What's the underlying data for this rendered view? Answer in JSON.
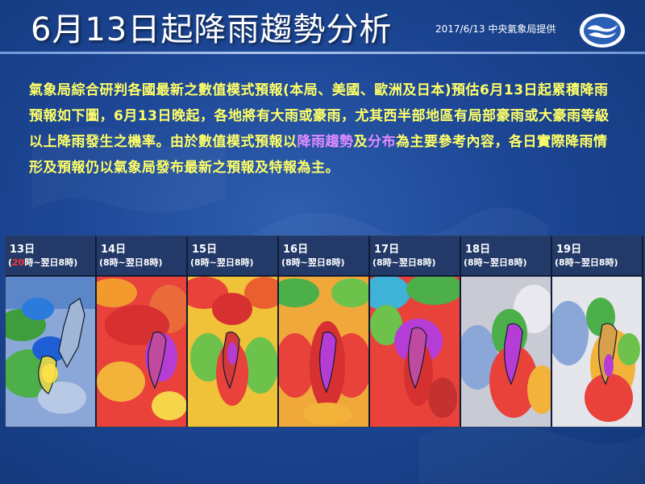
{
  "header": {
    "title": "6月13日起降雨趨勢分析",
    "source": "2017/6/13 中央氣象局提供"
  },
  "paragraph": {
    "part1": "氣象局綜合研判各國最新之數值模式預報(本局、美國、歐洲及日本)預估6月13日起累積降雨預報如下圖，6月13日晚起，各地將有大雨或豪雨，尤其西半部地區有局部豪雨或大豪雨等級以上降雨發生之機率。由於數值模式預報以",
    "highlight1": "降雨趨勢",
    "part2": "及",
    "highlight2": "分布",
    "part3": "為主要參考內容，各日實際降雨情形及預報仍以氣象局發布最新之預報及特報為主。"
  },
  "panels": [
    {
      "day": "13日",
      "range_pre": "(",
      "range_red": "20",
      "range_post": "時~翌日8時)"
    },
    {
      "day": "14日",
      "range_pre": "(8時~翌日8時)",
      "range_red": "",
      "range_post": ""
    },
    {
      "day": "15日",
      "range_pre": "(8時~翌日8時)",
      "range_red": "",
      "range_post": ""
    },
    {
      "day": "16日",
      "range_pre": "(8時~翌日8時)",
      "range_red": "",
      "range_post": ""
    },
    {
      "day": "17日",
      "range_pre": "(8時~翌日8時)",
      "range_red": "",
      "range_post": ""
    },
    {
      "day": "18日",
      "range_pre": "(8時~翌日8時)",
      "range_red": "",
      "range_post": ""
    },
    {
      "day": "19日",
      "range_pre": "(8時~翌日8時)",
      "range_red": "",
      "range_post": ""
    }
  ],
  "colors": {
    "title": "#ffffff",
    "paragraph": "#ffff66",
    "highlight": "#e08bff",
    "panel_header": "#233a69"
  },
  "icons": {
    "logo": "cwb-logo-icon"
  }
}
